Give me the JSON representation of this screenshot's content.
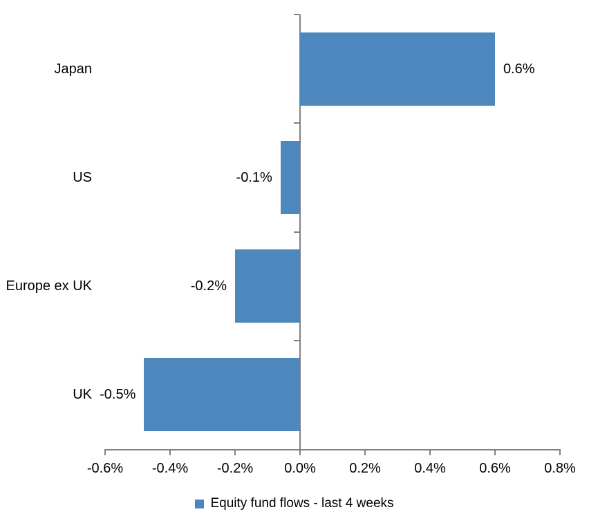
{
  "chart_data": {
    "type": "bar",
    "orientation": "horizontal",
    "unit": "%",
    "categories": [
      "Japan",
      "US",
      "Europe ex UK",
      "UK"
    ],
    "series": [
      {
        "name": "Equity fund flows - last 4 weeks",
        "values": [
          0.6,
          -0.06,
          -0.2,
          -0.48
        ],
        "data_labels": [
          "0.6%",
          "-0.1%",
          "-0.2%",
          "-0.5%"
        ]
      }
    ],
    "xlim": [
      -0.6,
      0.8
    ],
    "x_ticks": [
      -0.6,
      -0.4,
      -0.2,
      0,
      0.2,
      0.4,
      0.6,
      0.8
    ],
    "x_tick_labels": [
      "-0.6%",
      "-0.4%",
      "-0.2%",
      "0.0%",
      "0.2%",
      "0.4%",
      "0.6%",
      "0.8%"
    ],
    "grid": false,
    "legend_position": "bottom",
    "colors": {
      "bar": "#4E87BE",
      "axis": "#808080",
      "text": "#000000",
      "background": "#FFFFFF"
    }
  },
  "legend": {
    "label": "Equity fund flows - last 4 weeks"
  }
}
